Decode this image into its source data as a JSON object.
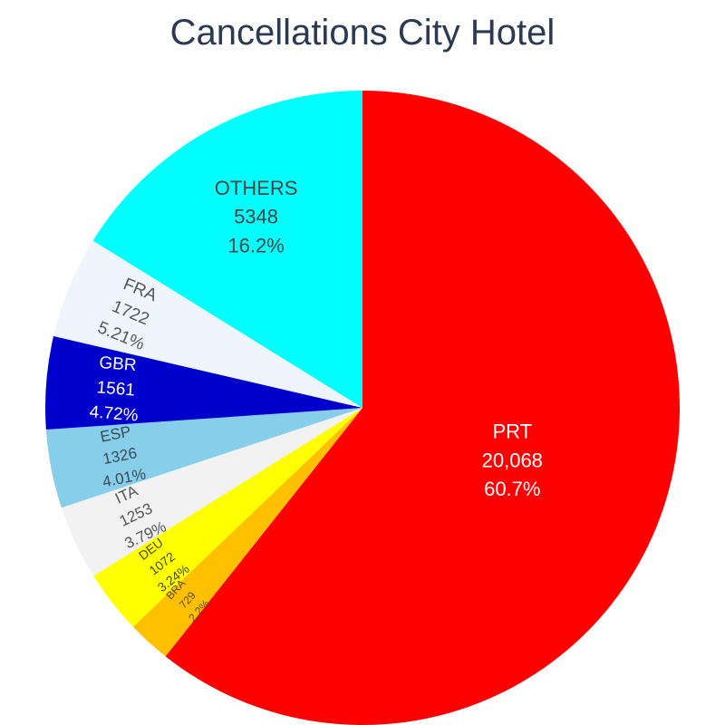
{
  "chart_data": {
    "type": "pie",
    "title": "Cancellations City Hotel",
    "slices": [
      {
        "label": "PRT",
        "value": 20068,
        "value_text": "20,068",
        "percent_text": "60.7%",
        "color": "#ff0000",
        "text_color": "#ffffff"
      },
      {
        "label": "BRA",
        "value": 729,
        "value_text": "729",
        "percent_text": "2.2%",
        "color": "#ffc000",
        "text_color": "#5a4a00"
      },
      {
        "label": "DEU",
        "value": 1072,
        "value_text": "1072",
        "percent_text": "3.24%",
        "color": "#ffff00",
        "text_color": "#4a4a00"
      },
      {
        "label": "ITA",
        "value": 1253,
        "value_text": "1253",
        "percent_text": "3.79%",
        "color": "#f2f2f2",
        "text_color": "#555555"
      },
      {
        "label": "ESP",
        "value": 1326,
        "value_text": "1326",
        "percent_text": "4.01%",
        "color": "#87ceeb",
        "text_color": "#3a4a55"
      },
      {
        "label": "GBR",
        "value": 1561,
        "value_text": "1561",
        "percent_text": "4.72%",
        "color": "#0000cd",
        "text_color": "#ffffff"
      },
      {
        "label": "FRA",
        "value": 1722,
        "value_text": "1722",
        "percent_text": "5.21%",
        "color": "#eef5fc",
        "text_color": "#555555"
      },
      {
        "label": "OTHERS",
        "value": 5348,
        "value_text": "5348",
        "percent_text": "16.2%",
        "color": "#00ffff",
        "text_color": "#444444"
      }
    ]
  }
}
